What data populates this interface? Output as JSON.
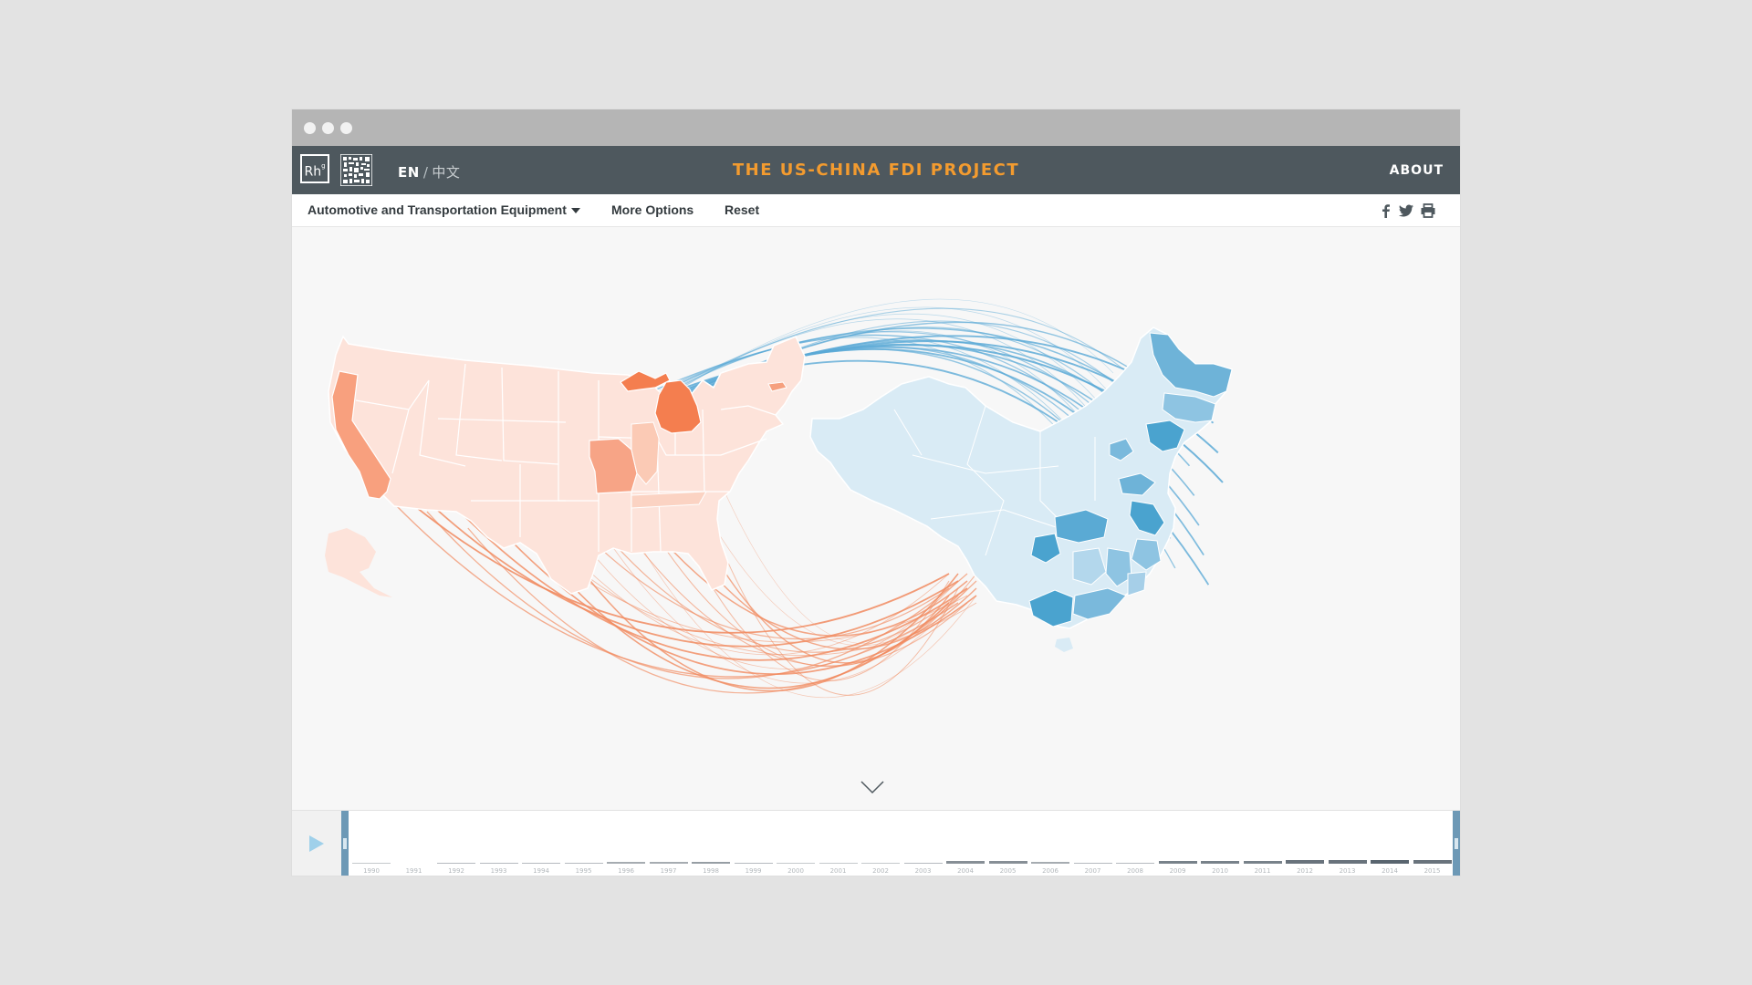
{
  "window": {
    "controls": [
      "close",
      "minimize",
      "maximize"
    ]
  },
  "header": {
    "logo_text": "Rh",
    "logo_sup": "g",
    "lang_en": "EN",
    "lang_sep": "/",
    "lang_zh": "中文",
    "title": "THE US-CHINA FDI PROJECT",
    "about": "ABOUT",
    "accent_color": "#f39b2f",
    "bar_color": "#4e585e"
  },
  "toolbar": {
    "industry": "Automotive and Transportation Equipment",
    "more_options": "More Options",
    "reset": "Reset",
    "share_icons": [
      "facebook-icon",
      "twitter-icon",
      "print-icon"
    ]
  },
  "map": {
    "us_color": "#f3835a",
    "us_light": "#fde3da",
    "china_color": "#4aa3cf",
    "china_light": "#d9ebf5",
    "highlighted_us_states": [
      "California",
      "Michigan",
      "Missouri",
      "Massachusetts"
    ],
    "flows_from_china": 24,
    "flows_to_china": 26
  },
  "timeline": {
    "play_icon": "play-icon",
    "years": [
      {
        "label": "1990",
        "level": 0.05
      },
      {
        "label": "1991",
        "level": 0
      },
      {
        "label": "1992",
        "level": 0.1
      },
      {
        "label": "1993",
        "level": 0.1
      },
      {
        "label": "1994",
        "level": 0.1
      },
      {
        "label": "1995",
        "level": 0.1
      },
      {
        "label": "1996",
        "level": 0.15
      },
      {
        "label": "1997",
        "level": 0.15
      },
      {
        "label": "1998",
        "level": 0.2
      },
      {
        "label": "1999",
        "level": 0.1
      },
      {
        "label": "2000",
        "level": 0.05
      },
      {
        "label": "2001",
        "level": 0.05
      },
      {
        "label": "2002",
        "level": 0.05
      },
      {
        "label": "2003",
        "level": 0.1
      },
      {
        "label": "2004",
        "level": 0.25
      },
      {
        "label": "2005",
        "level": 0.25
      },
      {
        "label": "2006",
        "level": 0.15
      },
      {
        "label": "2007",
        "level": 0.1
      },
      {
        "label": "2008",
        "level": 0.1
      },
      {
        "label": "2009",
        "level": 0.3
      },
      {
        "label": "2010",
        "level": 0.3
      },
      {
        "label": "2011",
        "level": 0.3
      },
      {
        "label": "2012",
        "level": 0.35
      },
      {
        "label": "2013",
        "level": 0.35
      },
      {
        "label": "2014",
        "level": 0.4
      },
      {
        "label": "2015",
        "level": 0.35
      }
    ]
  }
}
